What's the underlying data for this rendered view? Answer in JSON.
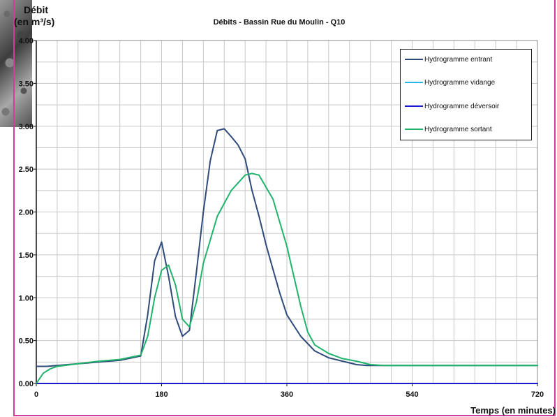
{
  "chart_data": {
    "type": "line",
    "title": "Débits - Bassin Rue du Moulin - Q10",
    "ylabel": [
      "Débit",
      "(en m³/s)"
    ],
    "xlabel": "Temps (en minutes)",
    "xlim": [
      0,
      720
    ],
    "ylim": [
      0,
      4
    ],
    "xticks": [
      0,
      180,
      360,
      540,
      720
    ],
    "xtick_labels": [
      "0",
      "180",
      "360",
      "540",
      "720"
    ],
    "yticks": [
      0,
      0.5,
      1,
      1.5,
      2,
      2.5,
      3,
      3.5,
      4
    ],
    "ytick_labels": [
      "0.00",
      "0.50",
      "1.00",
      "1.50",
      "2.00",
      "2.50",
      "3.00",
      "3.50",
      "4.00"
    ],
    "grid": true,
    "legend": "top-right",
    "series": [
      {
        "name": "Hydrogramme entrant",
        "color": "#2e4a7a",
        "x": [
          0,
          15,
          30,
          60,
          90,
          120,
          150,
          160,
          170,
          180,
          190,
          200,
          210,
          220,
          230,
          240,
          250,
          260,
          270,
          280,
          290,
          300,
          310,
          320,
          330,
          340,
          350,
          360,
          380,
          400,
          420,
          440,
          460,
          475,
          490,
          540,
          600,
          720
        ],
        "y": [
          0.2,
          0.2,
          0.21,
          0.23,
          0.25,
          0.27,
          0.32,
          0.8,
          1.43,
          1.65,
          1.25,
          0.78,
          0.55,
          0.62,
          1.3,
          2.0,
          2.6,
          2.95,
          2.97,
          2.88,
          2.78,
          2.62,
          2.25,
          1.95,
          1.62,
          1.33,
          1.05,
          0.8,
          0.55,
          0.38,
          0.3,
          0.26,
          0.22,
          0.21,
          0.21,
          0.21,
          0.21,
          0.21
        ]
      },
      {
        "name": "Hydrogramme vidange",
        "color": "#29b6e8",
        "x": [
          0,
          720
        ],
        "y": [
          0.0,
          0.0
        ]
      },
      {
        "name": "Hydrogramme déversoir",
        "color": "#1a1ad0",
        "x": [
          0,
          720
        ],
        "y": [
          0.0,
          0.0
        ]
      },
      {
        "name": "Hydrogramme sortant",
        "color": "#1fb36b",
        "x": [
          0,
          10,
          20,
          30,
          60,
          90,
          120,
          150,
          160,
          170,
          180,
          190,
          200,
          210,
          220,
          230,
          240,
          260,
          280,
          300,
          310,
          320,
          340,
          360,
          380,
          390,
          400,
          420,
          440,
          460,
          480,
          500,
          540,
          600,
          720
        ],
        "y": [
          0.0,
          0.12,
          0.17,
          0.2,
          0.23,
          0.26,
          0.28,
          0.33,
          0.55,
          1.0,
          1.32,
          1.38,
          1.15,
          0.75,
          0.66,
          0.95,
          1.4,
          1.95,
          2.25,
          2.43,
          2.45,
          2.43,
          2.15,
          1.6,
          0.9,
          0.6,
          0.45,
          0.35,
          0.29,
          0.26,
          0.22,
          0.21,
          0.21,
          0.21,
          0.21
        ]
      }
    ]
  }
}
